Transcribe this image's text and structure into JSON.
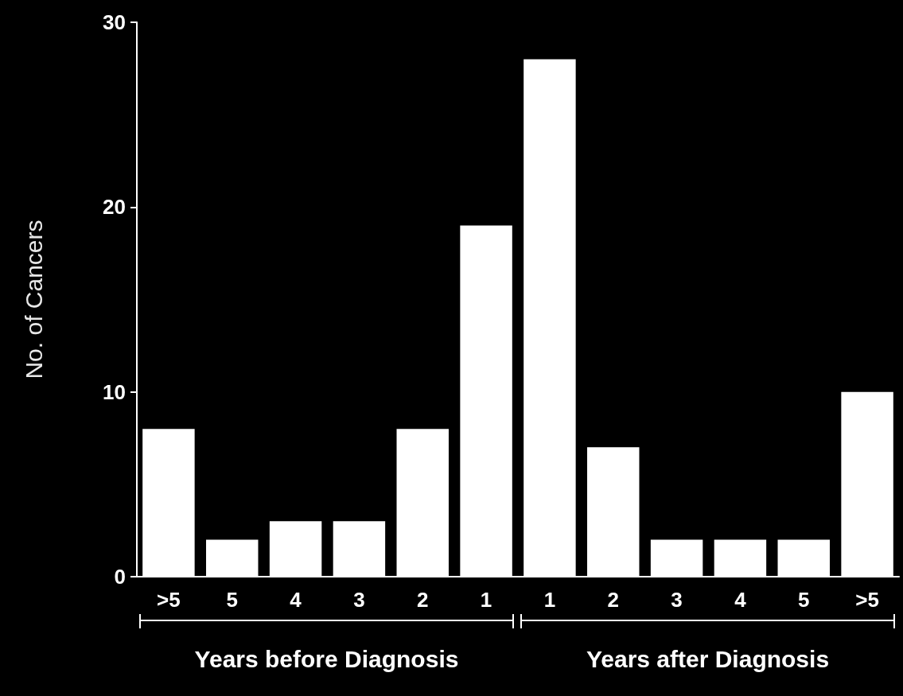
{
  "chart_data": {
    "type": "bar",
    "ylabel": "No. of Cancers",
    "categories": [
      ">5",
      "5",
      "4",
      "3",
      "2",
      "1",
      "1",
      "2",
      "3",
      "4",
      "5",
      ">5"
    ],
    "values": [
      8,
      2,
      3,
      3,
      8,
      19,
      28,
      7,
      2,
      2,
      2,
      10
    ],
    "color": "#ffffff",
    "ylim": [
      0,
      30
    ],
    "yticks": [
      0,
      10,
      20,
      30
    ],
    "grid": false,
    "annotations": [
      "Years before Diagnosis",
      "Years after Diagnosis"
    ]
  }
}
